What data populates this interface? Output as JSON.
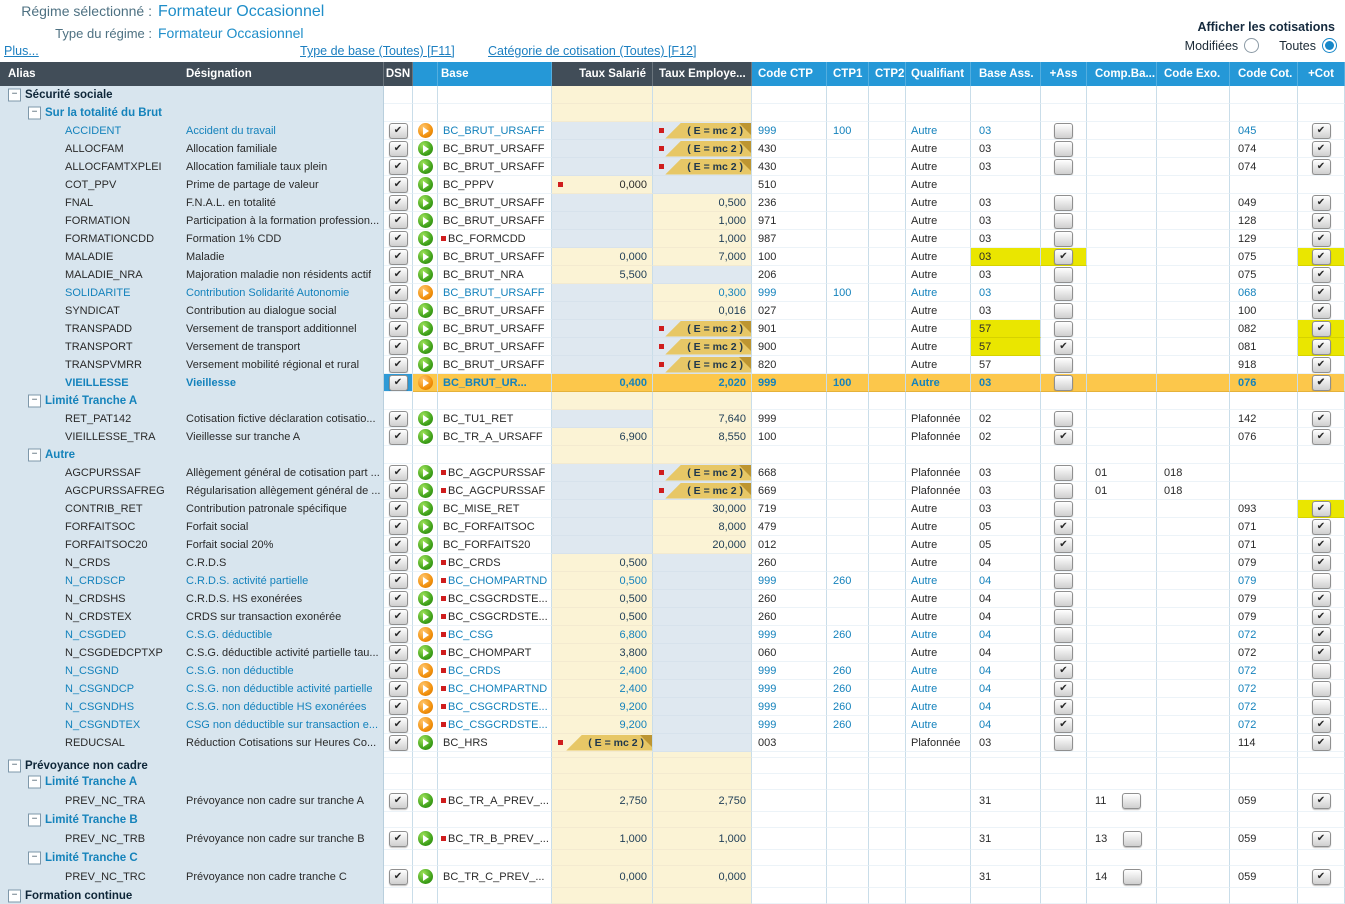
{
  "header": {
    "regime_label": "Régime sélectionné :",
    "regime_value": "Formateur Occasionnel",
    "type_label": "Type du régime :",
    "type_value": "Formateur Occasionnel",
    "link_plus": "Plus...",
    "link_type_base": "Type de base (Toutes) [F11]",
    "link_categorie": "Catégorie de cotisation (Toutes) [F12]",
    "afficher_label": "Afficher les cotisations",
    "radio_modifiees": "Modifiées",
    "radio_toutes": "Toutes",
    "radio_selected": "Toutes"
  },
  "colors": {
    "header_dark": "#414d58",
    "header_blue": "#2598d7",
    "tree_bg": "#d8e5ee",
    "value_cream": "#fbf3d5",
    "empty_blue": "#dfe8f0",
    "selected_row": "#fcc74b",
    "highlight_yellow": "#eae600",
    "link_blue": "#1c7fc0",
    "modified_blue": "#1482bc"
  },
  "columns": [
    "Alias",
    "Désignation",
    "DSN",
    "Base",
    "Taux Salarié",
    "Taux Employe...",
    "Code CTP",
    "CTP1",
    "CTP2",
    "Qualifiant",
    "Base Ass.",
    "+Ass",
    "Comp.Ba...",
    "Code Exo.",
    "Code Cot.",
    "+Cot"
  ],
  "emc2_text": "( E = mc 2 )",
  "rows": [
    {
      "t": "g1",
      "label": "Sécurité sociale"
    },
    {
      "t": "g2",
      "label": "Sur la totalité du Brut"
    },
    {
      "t": "d",
      "a": "ACCIDENT",
      "des": "Accident du travail",
      "m": true,
      "ic": "o",
      "b": "BC_BRUT_URSAFF",
      "te": "E",
      "c1": "999",
      "c2": "100",
      "q": "Autre",
      "ba": "03",
      "as": "u",
      "cc": "045",
      "co": "c"
    },
    {
      "t": "d",
      "a": "ALLOCFAM",
      "des": "Allocation familiale",
      "ic": "g",
      "b": "BC_BRUT_URSAFF",
      "te": "E",
      "c1": "430",
      "q": "Autre",
      "ba": "03",
      "as": "u",
      "cc": "074",
      "co": "c"
    },
    {
      "t": "d",
      "a": "ALLOCFAMTXPLEI",
      "des": "Allocation familiale taux plein",
      "ic": "g",
      "b": "BC_BRUT_URSAFF",
      "te": "E",
      "c1": "430",
      "q": "Autre",
      "ba": "03",
      "as": "u",
      "cc": "074",
      "co": "c"
    },
    {
      "t": "d",
      "a": "COT_PPV",
      "des": "Prime de partage de valeur",
      "ic": "g",
      "b": "BC_PPPV",
      "ts": "0,000",
      "tsd": true,
      "c1": "510",
      "q": "Autre"
    },
    {
      "t": "d",
      "a": "FNAL",
      "des": "F.N.A.L. en totalité",
      "ic": "g",
      "b": "BC_BRUT_URSAFF",
      "te": "0,500",
      "c1": "236",
      "q": "Autre",
      "ba": "03",
      "as": "u",
      "cc": "049",
      "co": "c"
    },
    {
      "t": "d",
      "a": "FORMATION",
      "des": "Participation à la formation profession...",
      "ic": "g",
      "b": "BC_BRUT_URSAFF",
      "te": "1,000",
      "c1": "971",
      "q": "Autre",
      "ba": "03",
      "as": "u",
      "cc": "128",
      "co": "c"
    },
    {
      "t": "d",
      "a": "FORMATIONCDD",
      "des": "Formation 1% CDD",
      "ic": "g",
      "b": "BC_FORMCDD",
      "bd": true,
      "te": "1,000",
      "c1": "987",
      "q": "Autre",
      "ba": "03",
      "as": "u",
      "cc": "129",
      "co": "c"
    },
    {
      "t": "d",
      "a": "MALADIE",
      "des": "Maladie",
      "ic": "g",
      "b": "BC_BRUT_URSAFF",
      "ts": "0,000",
      "te": "7,000",
      "c1": "100",
      "q": "Autre",
      "ba": "03",
      "bah": true,
      "as": "c",
      "ash": true,
      "cc": "075",
      "co": "c",
      "coh": true
    },
    {
      "t": "d",
      "a": "MALADIE_NRA",
      "des": "Majoration maladie non résidents actif",
      "ic": "g",
      "b": "BC_BRUT_NRA",
      "ts": "5,500",
      "c1": "206",
      "q": "Autre",
      "ba": "03",
      "as": "u",
      "cc": "075",
      "co": "c"
    },
    {
      "t": "d",
      "a": "SOLIDARITE",
      "des": "Contribution Solidarité Autonomie",
      "m": true,
      "ic": "o",
      "b": "BC_BRUT_URSAFF",
      "te": "0,300",
      "c1": "999",
      "c2": "100",
      "q": "Autre",
      "ba": "03",
      "as": "u",
      "cc": "068",
      "co": "c"
    },
    {
      "t": "d",
      "a": "SYNDICAT",
      "des": "Contribution au dialogue social",
      "ic": "g",
      "b": "BC_BRUT_URSAFF",
      "te": "0,016",
      "c1": "027",
      "q": "Autre",
      "ba": "03",
      "as": "u",
      "cc": "100",
      "co": "c"
    },
    {
      "t": "d",
      "a": "TRANSPADD",
      "des": "Versement de transport additionnel",
      "ic": "g",
      "b": "BC_BRUT_URSAFF",
      "te": "E",
      "c1": "901",
      "q": "Autre",
      "ba": "57",
      "bah": true,
      "as": "u",
      "cc": "082",
      "co": "c",
      "coh": true
    },
    {
      "t": "d",
      "a": "TRANSPORT",
      "des": "Versement de transport",
      "ic": "g",
      "b": "BC_BRUT_URSAFF",
      "te": "E",
      "c1": "900",
      "q": "Autre",
      "ba": "57",
      "bah": true,
      "as": "c",
      "cc": "081",
      "co": "c",
      "coh": true
    },
    {
      "t": "d",
      "a": "TRANSPVMRR",
      "des": "Versement mobilité régional et rural",
      "ic": "g",
      "b": "BC_BRUT_URSAFF",
      "te": "E",
      "c1": "820",
      "q": "Autre",
      "ba": "57",
      "as": "u",
      "cc": "918",
      "co": "c"
    },
    {
      "t": "d",
      "a": "VIEILLESSE",
      "des": "Vieillesse",
      "m": true,
      "sel": true,
      "ic": "o",
      "b": "BC_BRUT_UR...",
      "ts": "0,400",
      "te": "2,020",
      "c1": "999",
      "c2": "100",
      "q": "Autre",
      "ba": "03",
      "as": "u",
      "cc": "076",
      "co": "c"
    },
    {
      "t": "g2",
      "label": "Limité Tranche A"
    },
    {
      "t": "d",
      "a": "RET_PAT142",
      "des": "Cotisation fictive déclaration cotisatio...",
      "ic": "g",
      "b": "BC_TU1_RET",
      "te": "7,640",
      "c1": "999",
      "q": "Plafonnée",
      "ba": "02",
      "as": "u",
      "cc": "142",
      "co": "c"
    },
    {
      "t": "d",
      "a": "VIEILLESSE_TRA",
      "des": "Vieillesse sur tranche A",
      "ic": "g",
      "b": "BC_TR_A_URSAFF",
      "ts": "6,900",
      "te": "8,550",
      "c1": "100",
      "q": "Plafonnée",
      "ba": "02",
      "as": "c",
      "cc": "076",
      "co": "c"
    },
    {
      "t": "g2",
      "label": "Autre"
    },
    {
      "t": "d",
      "a": "AGCPURSSAF",
      "des": "Allègement général de cotisation part ...",
      "ic": "g",
      "b": "BC_AGCPURSSAF",
      "bd": true,
      "te": "E",
      "c1": "668",
      "q": "Plafonnée",
      "ba": "03",
      "as": "u",
      "cb": "01",
      "ex": "018"
    },
    {
      "t": "d",
      "a": "AGCPURSSAFREG",
      "des": "Régularisation allègement général de ...",
      "ic": "g",
      "b": "BC_AGCPURSSAF",
      "bd": true,
      "te": "E",
      "c1": "669",
      "q": "Plafonnée",
      "ba": "03",
      "as": "u",
      "cb": "01",
      "ex": "018"
    },
    {
      "t": "d",
      "a": "CONTRIB_RET",
      "des": "Contribution patronale spécifique",
      "ic": "g",
      "b": "BC_MISE_RET",
      "te": "30,000",
      "c1": "719",
      "q": "Autre",
      "ba": "03",
      "as": "u",
      "cc": "093",
      "co": "c",
      "coh": true
    },
    {
      "t": "d",
      "a": "FORFAITSOC",
      "des": "Forfait social",
      "ic": "g",
      "b": "BC_FORFAITSOC",
      "te": "8,000",
      "c1": "479",
      "q": "Autre",
      "ba": "05",
      "as": "c",
      "cc": "071",
      "co": "c"
    },
    {
      "t": "d",
      "a": "FORFAITSOC20",
      "des": "Forfait social 20%",
      "ic": "g",
      "b": "BC_FORFAITS20",
      "te": "20,000",
      "c1": "012",
      "q": "Autre",
      "ba": "05",
      "as": "c",
      "cc": "071",
      "co": "c"
    },
    {
      "t": "d",
      "a": "N_CRDS",
      "des": "C.R.D.S",
      "ic": "g",
      "b": "BC_CRDS",
      "bd": true,
      "ts": "0,500",
      "c1": "260",
      "q": "Autre",
      "ba": "04",
      "as": "u",
      "cc": "079",
      "co": "c"
    },
    {
      "t": "d",
      "a": "N_CRDSCP",
      "des": "C.R.D.S. activité partielle",
      "m": true,
      "ic": "o",
      "b": "BC_CHOMPARTND",
      "bd": true,
      "ts": "0,500",
      "c1": "999",
      "c2": "260",
      "q": "Autre",
      "ba": "04",
      "as": "u",
      "cc": "079",
      "co": "u"
    },
    {
      "t": "d",
      "a": "N_CRDSHS",
      "des": "C.R.D.S. HS exonérées",
      "ic": "g",
      "b": "BC_CSGCRDSTE...",
      "bd": true,
      "ts": "0,500",
      "c1": "260",
      "q": "Autre",
      "ba": "04",
      "as": "u",
      "cc": "079",
      "co": "c"
    },
    {
      "t": "d",
      "a": "N_CRDSTEX",
      "des": "CRDS sur transaction exonérée",
      "ic": "g",
      "b": "BC_CSGCRDSTE...",
      "bd": true,
      "ts": "0,500",
      "c1": "260",
      "q": "Autre",
      "ba": "04",
      "as": "u",
      "cc": "079",
      "co": "c"
    },
    {
      "t": "d",
      "a": "N_CSGDED",
      "des": "C.S.G. déductible",
      "m": true,
      "ic": "o",
      "b": "BC_CSG",
      "bd": true,
      "ts": "6,800",
      "c1": "999",
      "c2": "260",
      "q": "Autre",
      "ba": "04",
      "as": "u",
      "cc": "072",
      "co": "c"
    },
    {
      "t": "d",
      "a": "N_CSGDEDCPTXP",
      "des": "C.S.G. déductible activité partielle tau...",
      "ic": "g",
      "b": "BC_CHOMPART",
      "bd": true,
      "ts": "3,800",
      "c1": "060",
      "q": "Autre",
      "ba": "04",
      "as": "u",
      "cc": "072",
      "co": "c"
    },
    {
      "t": "d",
      "a": "N_CSGND",
      "des": "C.S.G. non déductible",
      "m": true,
      "ic": "o",
      "b": "BC_CRDS",
      "bd": true,
      "ts": "2,400",
      "c1": "999",
      "c2": "260",
      "q": "Autre",
      "ba": "04",
      "as": "c",
      "cc": "072",
      "co": "u"
    },
    {
      "t": "d",
      "a": "N_CSGNDCP",
      "des": "C.S.G. non déductible activité partielle",
      "m": true,
      "ic": "o",
      "b": "BC_CHOMPARTND",
      "bd": true,
      "ts": "2,400",
      "c1": "999",
      "c2": "260",
      "q": "Autre",
      "ba": "04",
      "as": "c",
      "cc": "072",
      "co": "u"
    },
    {
      "t": "d",
      "a": "N_CSGNDHS",
      "des": "C.S.G. non déductible HS exonérées",
      "m": true,
      "ic": "o",
      "b": "BC_CSGCRDSTE...",
      "bd": true,
      "ts": "9,200",
      "c1": "999",
      "c2": "260",
      "q": "Autre",
      "ba": "04",
      "as": "c",
      "cc": "072",
      "co": "u"
    },
    {
      "t": "d",
      "a": "N_CSGNDTEX",
      "des": "CSG non déductible sur transaction e...",
      "m": true,
      "ic": "o",
      "b": "BC_CSGCRDSTE...",
      "bd": true,
      "ts": "9,200",
      "c1": "999",
      "c2": "260",
      "q": "Autre",
      "ba": "04",
      "as": "c",
      "cc": "072",
      "co": "c"
    },
    {
      "t": "d",
      "a": "REDUCSAL",
      "des": "Réduction Cotisations sur Heures Co...",
      "ic": "g",
      "b": "BC_HRS",
      "ts": "E",
      "c1": "003",
      "q": "Plafonnée",
      "ba": "03",
      "as": "u",
      "cc": "114",
      "co": "c"
    },
    {
      "t": "sp"
    },
    {
      "t": "g1",
      "label": "Prévoyance non cadre"
    },
    {
      "t": "g2",
      "label": "Limité Tranche A"
    },
    {
      "t": "d",
      "a": "PREV_NC_TRA",
      "des": "Prévoyance non cadre sur tranche A",
      "tall": true,
      "ic": "g",
      "b": "BC_TR_A_PREV_...",
      "bd": true,
      "ts": "2,750",
      "te": "2,750",
      "ba": "31",
      "cb": "11",
      "cbb": true,
      "cc": "059",
      "co": "c"
    },
    {
      "t": "g2",
      "label": "Limité Tranche B"
    },
    {
      "t": "d",
      "a": "PREV_NC_TRB",
      "des": "Prévoyance non cadre sur tranche B",
      "tall": true,
      "ic": "g",
      "b": "BC_TR_B_PREV_...",
      "bd": true,
      "ts": "1,000",
      "te": "1,000",
      "ba": "31",
      "cb": "13",
      "cbb": true,
      "cc": "059",
      "co": "c"
    },
    {
      "t": "g2",
      "label": "Limité Tranche C"
    },
    {
      "t": "d",
      "a": "PREV_NC_TRC",
      "des": "Prévoyance non cadre tranche C",
      "tall": true,
      "ic": "g",
      "b": "BC_TR_C_PREV_...",
      "ts": "0,000",
      "te": "0,000",
      "ba": "31",
      "cb": "14",
      "cbb": true,
      "cc": "059",
      "co": "c"
    },
    {
      "t": "g1",
      "label": "Formation continue"
    }
  ]
}
